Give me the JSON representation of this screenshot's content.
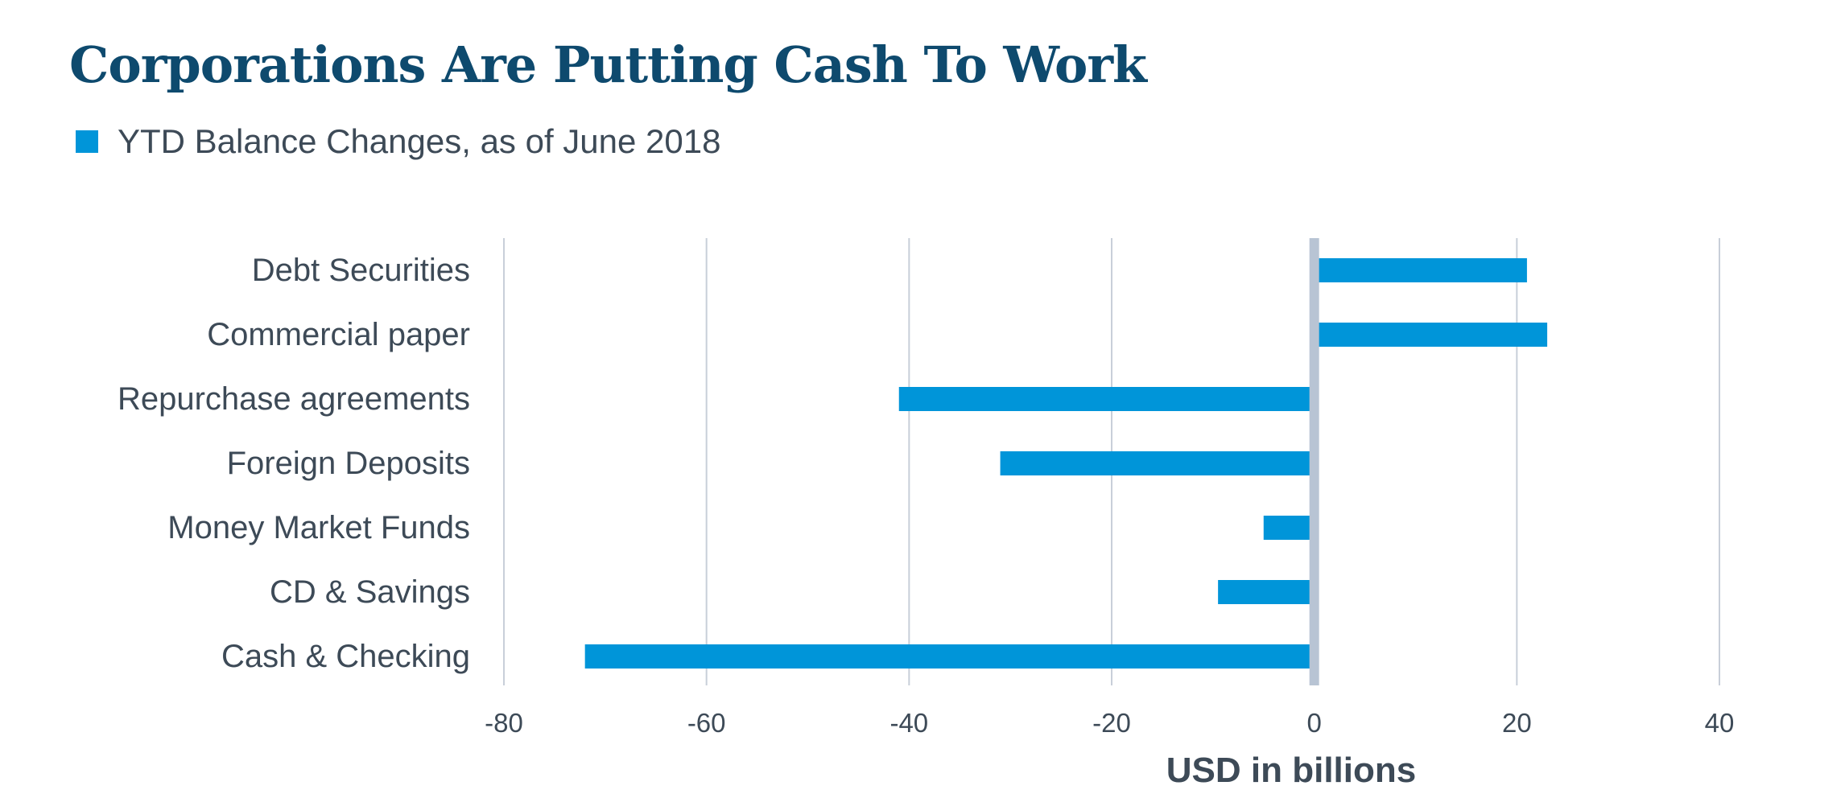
{
  "chart_data": {
    "type": "bar",
    "orientation": "horizontal",
    "title": "Corporations Are Putting Cash To Work",
    "xlabel": "USD in billions",
    "ylabel": "",
    "categories": [
      "Debt Securities",
      "Commercial paper",
      "Repurchase agreements",
      "Foreign Deposits",
      "Money Market Funds",
      "CD & Savings",
      "Cash & Checking"
    ],
    "series": [
      {
        "name": "YTD Balance Changes, as of June 2018",
        "values": [
          21,
          23,
          -41,
          -31,
          -5,
          -9.5,
          -72
        ],
        "color": "#0095d9"
      }
    ],
    "xlim": [
      -80,
      40
    ],
    "xticks": [
      -80,
      -60,
      -40,
      -20,
      0,
      20,
      40
    ],
    "grid": true,
    "legend": "top-left",
    "colors": {
      "title": "#0e4a6e",
      "text": "#3d4a57",
      "grid": "#c8cfd9",
      "zero_line": "#b8c4d4",
      "bar": "#0095d9"
    }
  }
}
